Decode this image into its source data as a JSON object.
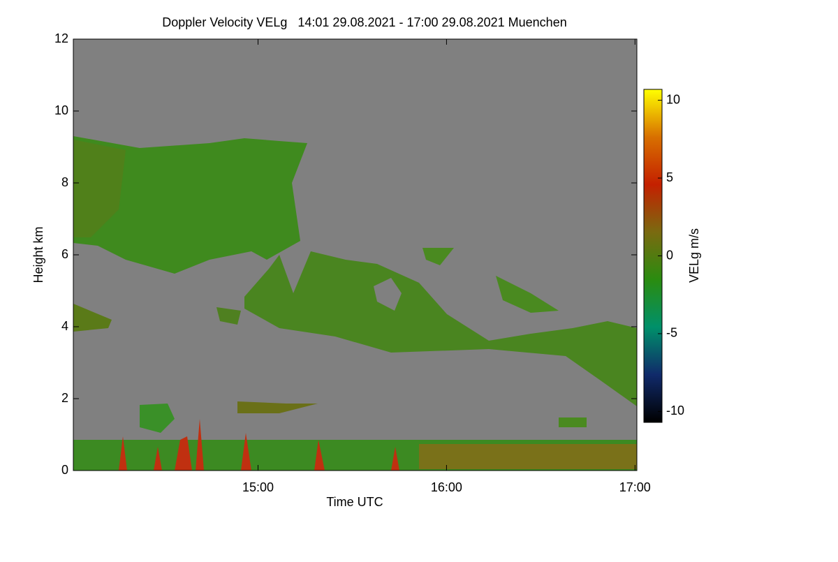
{
  "chart_data": {
    "type": "heatmap",
    "title": "Doppler Velocity VELg   14:01 29.08.2021 - 17:00 29.08.2021 Muenchen",
    "x_label": "Time UTC",
    "y_label": "Height km",
    "xlim": [
      14.02,
      17.01
    ],
    "xticks": [
      {
        "value": 15,
        "label": "15:00"
      },
      {
        "value": 16,
        "label": "16:00"
      },
      {
        "value": 17,
        "label": "17:00"
      }
    ],
    "ylim": [
      0,
      12
    ],
    "yticks": [
      0,
      2,
      4,
      6,
      8,
      10,
      12
    ],
    "colorbar": {
      "label": "VELg m/s",
      "clim": [
        -10.7,
        10.7
      ],
      "ticks": [
        -10,
        -5,
        0,
        5,
        10
      ],
      "colormap": [
        "#000000",
        "#102a6a",
        "#00906a",
        "#2a8c10",
        "#7a6a10",
        "#c42000",
        "#d87000",
        "#ffff00"
      ]
    },
    "background_color": "#808080",
    "grid": false
  }
}
